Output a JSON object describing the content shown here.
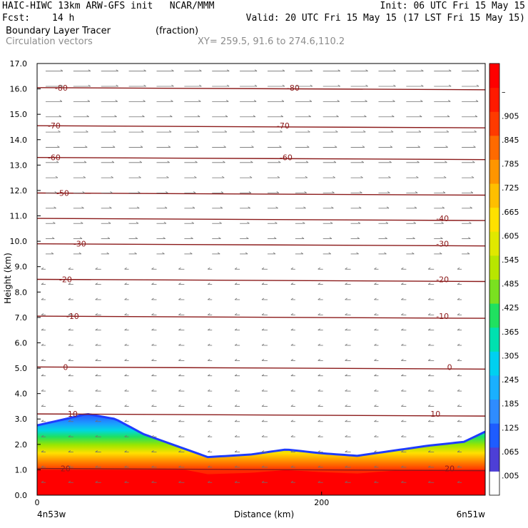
{
  "header": {
    "line1_left": "HAIC-HIWC 13km ARW-GFS init   NCAR/MMM",
    "line1_right": "Init: 06 UTC Fri 15 May 15",
    "fcst_label": "Fcst:",
    "fcst_value": "14 h",
    "valid": "Valid: 20 UTC Fri 15 May 15 (17 LST Fri 15 May 15)",
    "field_name": "Boundary Layer Tracer",
    "field_unit": "(fraction)",
    "vector_label": "Circulation vectors",
    "xy_label": "XY= 259.5, 91.6 to 274.6,110.2"
  },
  "chart_data": {
    "type": "heatmap",
    "title": "Boundary Layer Tracer (fraction)",
    "xlabel": "Distance (km)",
    "ylabel": "Height (km)",
    "xlim": [
      0,
      315
    ],
    "ylim": [
      0,
      17
    ],
    "x_ticks": [
      0,
      200
    ],
    "x_end_labels": [
      "4n53w",
      "6n51w"
    ],
    "y_ticks": [
      "0.0",
      "1.0",
      "2.0",
      "3.0",
      "4.0",
      "5.0",
      "6.0",
      "7.0",
      "8.0",
      "9.0",
      "10.0",
      "11.0",
      "12.0",
      "13.0",
      "14.0",
      "15.0",
      "16.0",
      "17.0"
    ],
    "colorbar": {
      "labels": [
        ".005",
        ".065",
        ".125",
        ".185",
        ".245",
        ".305",
        ".365",
        ".425",
        ".485",
        ".545",
        ".605",
        ".665",
        ".725",
        ".785",
        ".845",
        ".905",
        "–"
      ],
      "colors": [
        "#ffffff",
        "#4d3fd6",
        "#1e5cff",
        "#2f8cff",
        "#1ab0ff",
        "#00d0f0",
        "#00e0b0",
        "#20e060",
        "#7ae020",
        "#b8e600",
        "#e0e800",
        "#ffe000",
        "#ffbf00",
        "#ff9500",
        "#ff6a00",
        "#ff3a00",
        "#ff1a00",
        "#ff0000"
      ]
    },
    "tracer_top": [
      [
        0,
        2.75
      ],
      [
        20,
        3.0
      ],
      [
        35,
        3.2
      ],
      [
        55,
        3.0
      ],
      [
        75,
        2.4
      ],
      [
        95,
        2.0
      ],
      [
        120,
        1.5
      ],
      [
        150,
        1.6
      ],
      [
        175,
        1.8
      ],
      [
        200,
        1.65
      ],
      [
        225,
        1.55
      ],
      [
        250,
        1.75
      ],
      [
        275,
        1.95
      ],
      [
        300,
        2.1
      ],
      [
        315,
        2.5
      ]
    ],
    "temperature_contours": [
      {
        "value": -80,
        "height": 16.05,
        "label": "-80",
        "label_x": [
          17,
          180
        ]
      },
      {
        "value": -70,
        "height": 14.55,
        "label": "-70",
        "label_x": [
          12,
          173
        ]
      },
      {
        "value": -60,
        "height": 13.3,
        "label": "-60",
        "label_x": [
          12,
          175
        ]
      },
      {
        "value": -50,
        "height": 11.9,
        "label": "-50",
        "label_x": [
          18
        ]
      },
      {
        "value": -40,
        "height": 10.9,
        "label": "-40",
        "label_x": [
          285
        ]
      },
      {
        "value": -30,
        "height": 9.9,
        "label": "-30",
        "label_x": [
          30,
          285
        ]
      },
      {
        "value": -20,
        "height": 8.5,
        "label": "-20",
        "label_x": [
          20,
          285
        ]
      },
      {
        "value": -10,
        "height": 7.05,
        "label": "-10",
        "label_x": [
          25,
          285
        ]
      },
      {
        "value": 0,
        "height": 5.05,
        "label": "0",
        "label_x": [
          20,
          290
        ]
      },
      {
        "value": 10,
        "height": 3.2,
        "label": "10",
        "label_x": [
          25,
          280
        ]
      },
      {
        "value": 20,
        "height": 1.05,
        "label": "20",
        "label_x": [
          20,
          290
        ]
      }
    ],
    "grid": false,
    "legend": "right colorbar"
  }
}
